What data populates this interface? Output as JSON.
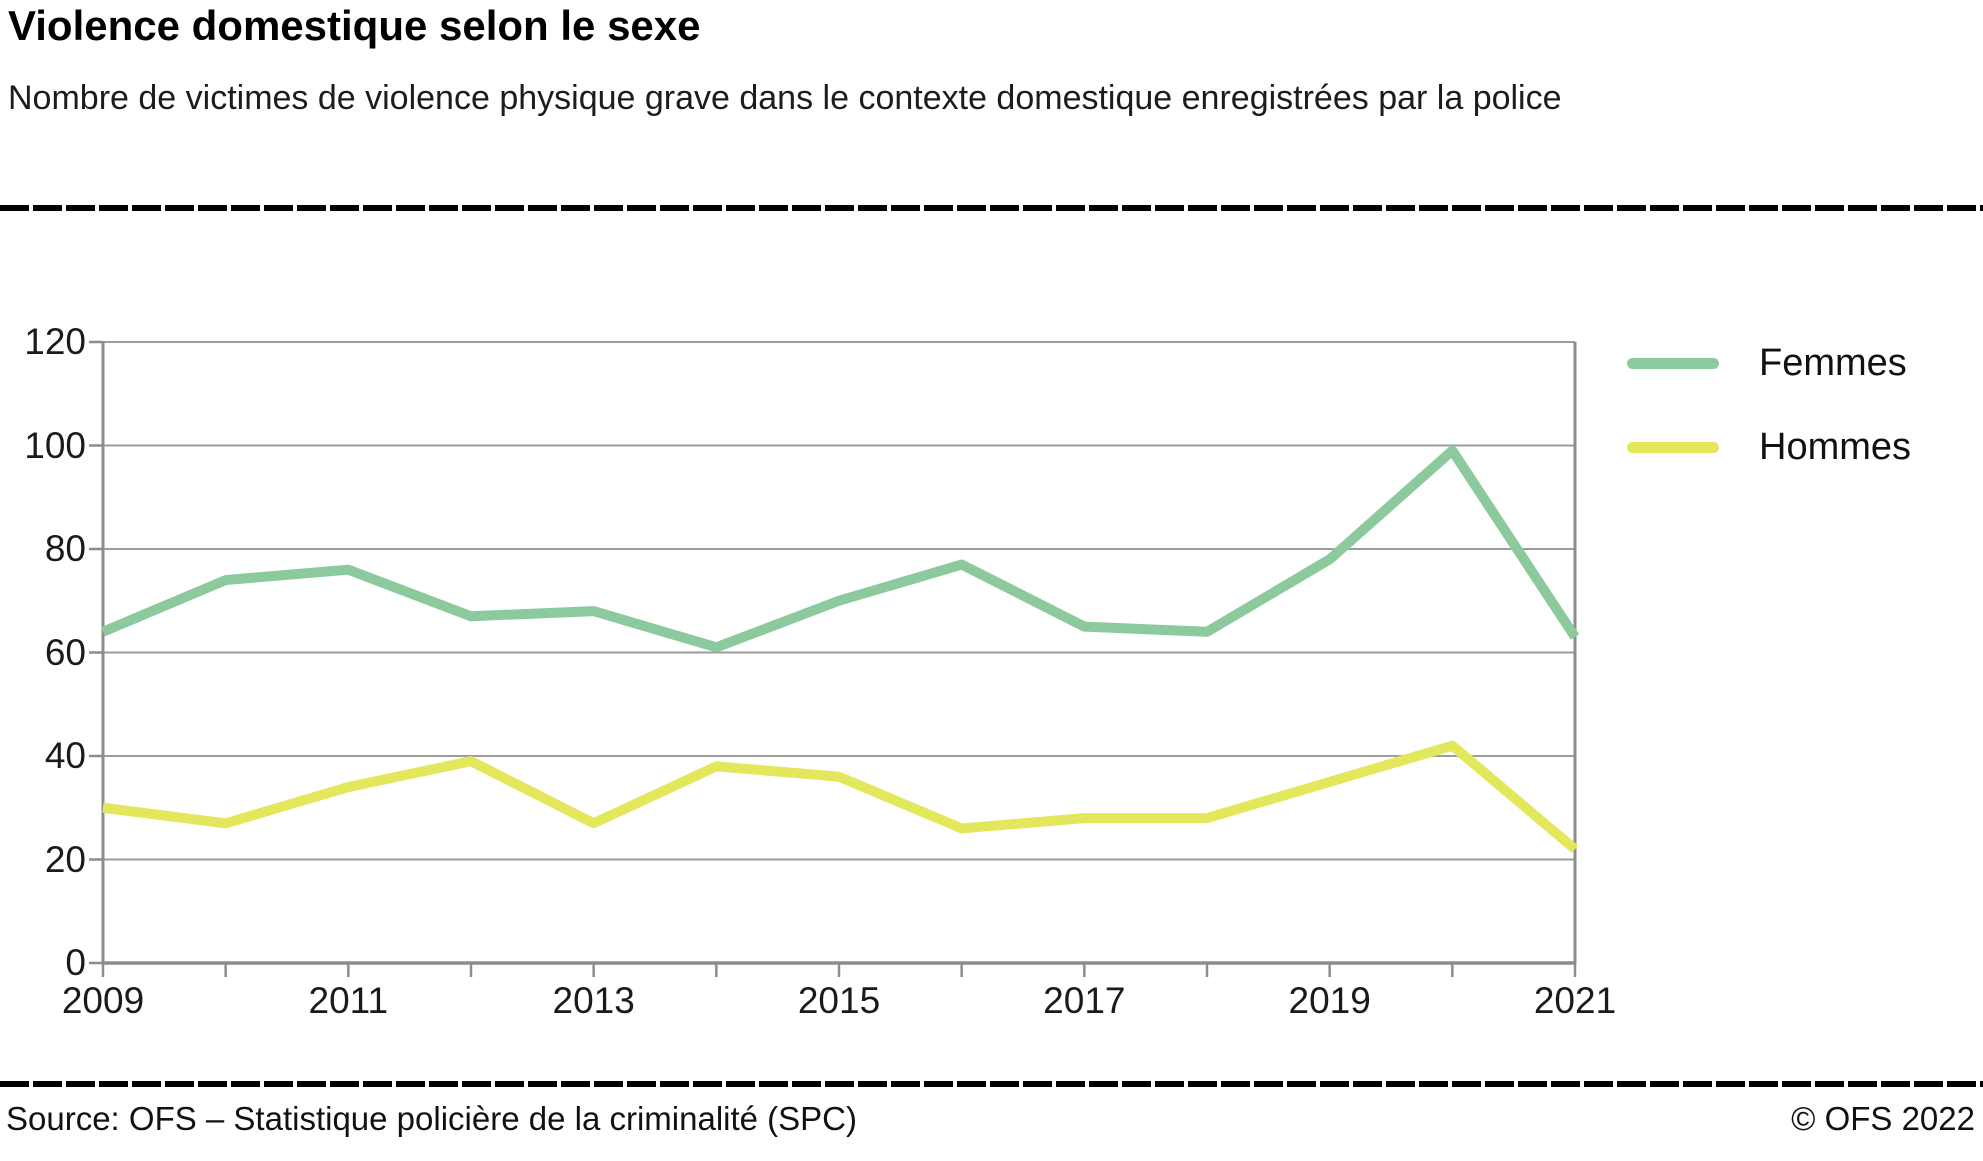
{
  "header": {
    "title": "Violence domestique selon le sexe",
    "subtitle": "Nombre de victimes de violence physique grave dans le contexte domestique enregistrées par la police"
  },
  "chart_data": {
    "type": "line",
    "x": [
      2009,
      2010,
      2011,
      2012,
      2013,
      2014,
      2015,
      2016,
      2017,
      2018,
      2019,
      2020,
      2021
    ],
    "series": [
      {
        "name": "Femmes",
        "color": "#8cca9d",
        "values": [
          64,
          74,
          76,
          67,
          68,
          61,
          70,
          77,
          65,
          64,
          78,
          99,
          63
        ]
      },
      {
        "name": "Hommes",
        "color": "#e3e75b",
        "values": [
          30,
          27,
          34,
          39,
          27,
          38,
          36,
          26,
          28,
          28,
          35,
          42,
          22
        ]
      }
    ],
    "ylim": [
      0,
      120
    ],
    "yticks": [
      0,
      20,
      40,
      60,
      80,
      100,
      120
    ],
    "xtick_labels": [
      "2009",
      "2011",
      "2013",
      "2015",
      "2017",
      "2019",
      "2021"
    ],
    "grid": true,
    "legend_position": "top-right",
    "grid_color": "#9c9c9c",
    "axis_color": "#8c8c8c"
  },
  "footer": {
    "source": "Source: OFS – Statistique policière de la criminalité (SPC)",
    "copyright": "© OFS 2022"
  }
}
